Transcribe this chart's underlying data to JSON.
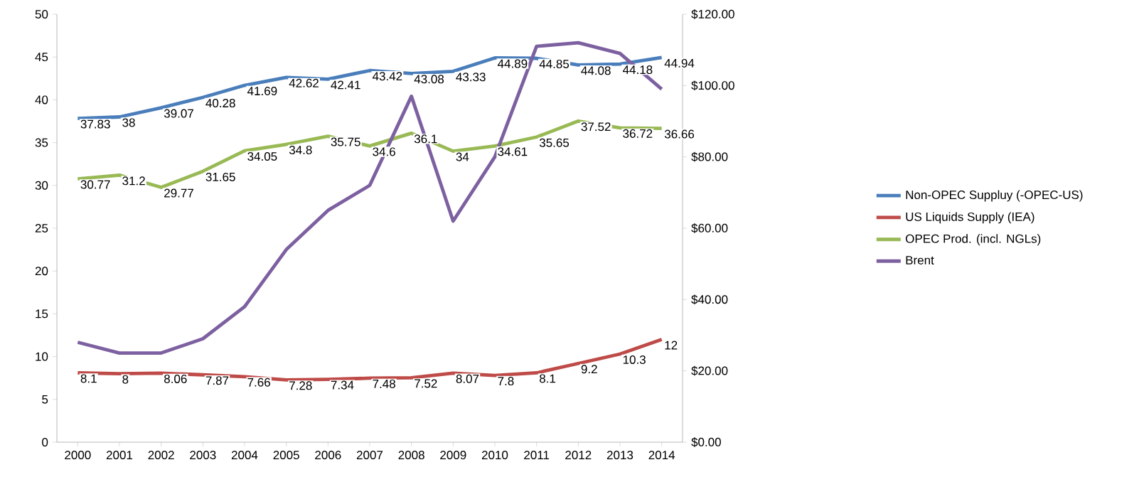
{
  "chart_data": {
    "type": "line",
    "categories": [
      "2000",
      "2001",
      "2002",
      "2003",
      "2004",
      "2005",
      "2006",
      "2007",
      "2008",
      "2009",
      "2010",
      "2011",
      "2012",
      "2013",
      "2014"
    ],
    "series": [
      {
        "name": "Non-OPEC Suppluy (-OPEC-US)",
        "color": "#4a7ebb",
        "values": [
          37.83,
          38,
          39.07,
          40.28,
          41.69,
          42.62,
          42.41,
          43.42,
          43.08,
          43.33,
          44.89,
          44.85,
          44.08,
          44.18,
          44.94
        ],
        "value_labels": [
          "37.83",
          "38",
          "39.07",
          "40.28",
          "41.69",
          "42.62",
          "42.41",
          "43.42",
          "43.08",
          "43.33",
          "44.89",
          "44.85",
          "44.08",
          "44.18",
          "44.94"
        ]
      },
      {
        "name": "US Liquids Supply (IEA)",
        "color": "#be4b48",
        "values": [
          8.1,
          8,
          8.06,
          7.87,
          7.66,
          7.28,
          7.34,
          7.48,
          7.52,
          8.07,
          7.8,
          8.1,
          9.2,
          10.3,
          12
        ],
        "value_labels": [
          "8.1",
          "8",
          "8.06",
          "7.87",
          "7.66",
          "7.28",
          "7.34",
          "7.48",
          "7.52",
          "8.07",
          "7.8",
          "8.1",
          "9.2",
          "10.3",
          "12"
        ]
      },
      {
        "name": "OPEC Prod. (incl. NGLs)",
        "color": "#98b954",
        "values": [
          30.77,
          31.2,
          29.77,
          31.65,
          34.05,
          34.8,
          35.75,
          34.6,
          36.1,
          34,
          34.61,
          35.65,
          37.52,
          36.72,
          36.66
        ],
        "value_labels": [
          "30.77",
          "31.2",
          "29.77",
          "31.65",
          "34.05",
          "34.8",
          "35.75",
          "34.6",
          "36.1",
          "34",
          "34.61",
          "35.65",
          "37.52",
          "36.72",
          "36.66"
        ]
      },
      {
        "name": "Brent",
        "color": "#7d60a0",
        "axis": "y2",
        "values": [
          28,
          25,
          25,
          29,
          38,
          54,
          65,
          72,
          97,
          62,
          80,
          111,
          112,
          109,
          99
        ]
      }
    ],
    "ylim": [
      0,
      50
    ],
    "yticks": [
      0,
      5,
      10,
      15,
      20,
      25,
      30,
      35,
      40,
      45,
      50
    ],
    "y2lim": [
      0,
      120
    ],
    "y2ticks": [
      {
        "value": 0,
        "label": "$0.00"
      },
      {
        "value": 20,
        "label": "$20.00"
      },
      {
        "value": 40,
        "label": "$40.00"
      },
      {
        "value": 60,
        "label": "$60.00"
      },
      {
        "value": 80,
        "label": "$80.00"
      },
      {
        "value": 100,
        "label": "$100.00"
      },
      {
        "value": 120,
        "label": "$120.00"
      }
    ],
    "grid": false,
    "legend": "right"
  }
}
